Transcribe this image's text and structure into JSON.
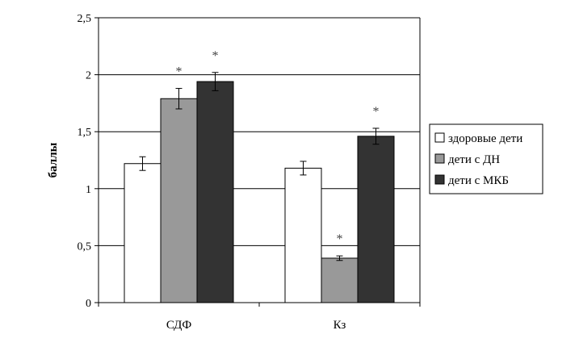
{
  "chart_data": {
    "type": "bar",
    "categories": [
      "СДФ",
      "Кз"
    ],
    "series": [
      {
        "name": "здоровые дети",
        "color": "#ffffff",
        "values": [
          1.22,
          1.18
        ],
        "errors": [
          0.06,
          0.06
        ],
        "significant": [
          false,
          false
        ]
      },
      {
        "name": "дети с ДН",
        "color": "#999999",
        "values": [
          1.79,
          0.39
        ],
        "errors": [
          0.09,
          0.02
        ],
        "significant": [
          true,
          true
        ]
      },
      {
        "name": "дети с МКБ",
        "color": "#333333",
        "values": [
          1.94,
          1.46
        ],
        "errors": [
          0.08,
          0.07
        ],
        "significant": [
          true,
          true
        ]
      }
    ],
    "title": "",
    "xlabel": "",
    "ylabel": "баллы",
    "ylim": [
      0,
      2.5
    ],
    "yticks": [
      "0",
      "0,5",
      "1",
      "1,5",
      "2",
      "2,5"
    ],
    "ytick_values": [
      0,
      0.5,
      1,
      1.5,
      2,
      2.5
    ],
    "significance_marker": "*",
    "grid": true,
    "legend_position": "right"
  }
}
